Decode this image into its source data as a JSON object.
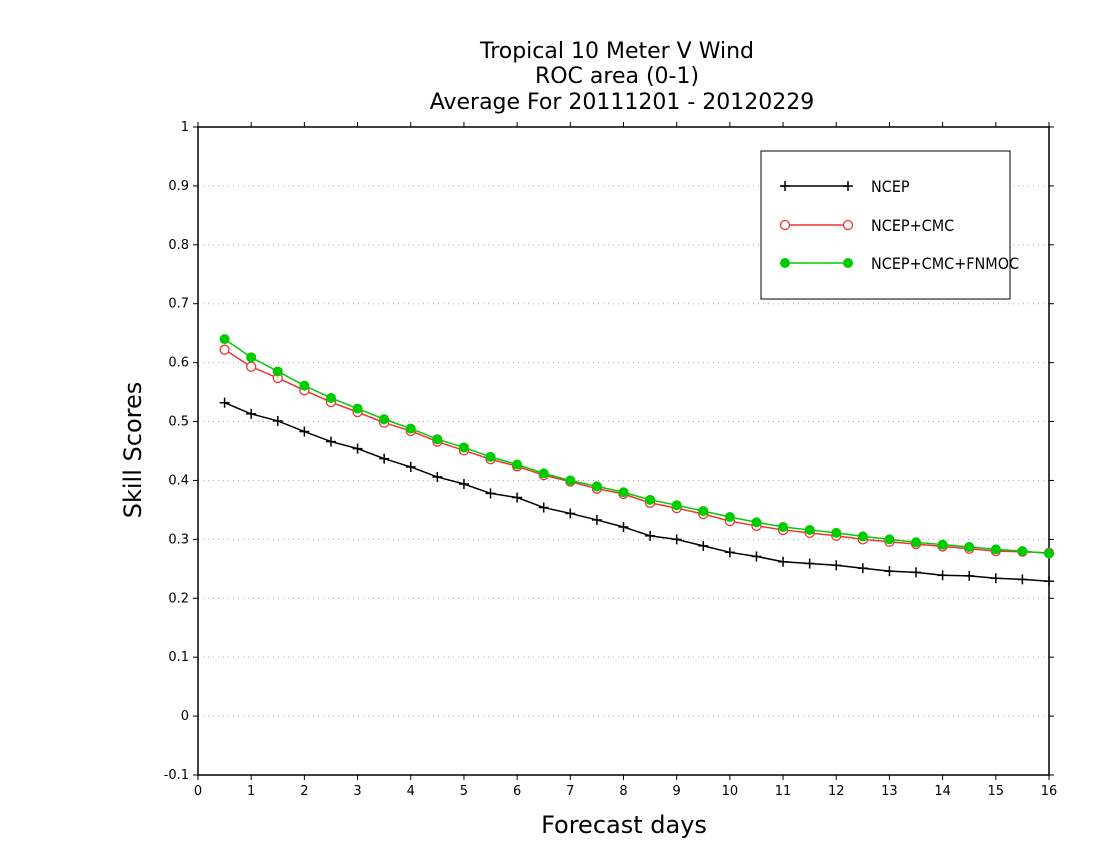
{
  "chart_data": {
    "type": "line",
    "title_lines": [
      "Tropical 10 Meter V Wind",
      "ROC area (0-1)",
      "Average For 20111201 - 20120229"
    ],
    "xlabel": "Forecast days",
    "ylabel": "Skill Scores",
    "xlim": [
      0,
      16
    ],
    "ylim": [
      -0.1,
      1
    ],
    "x_ticks": [
      0,
      1,
      2,
      3,
      4,
      5,
      6,
      7,
      8,
      9,
      10,
      11,
      12,
      13,
      14,
      15,
      16
    ],
    "y_ticks": [
      -0.1,
      0,
      0.1,
      0.2,
      0.3,
      0.4,
      0.5,
      0.6,
      0.7,
      0.8,
      0.9,
      1
    ],
    "y_tick_labels": [
      "-0.1",
      "0",
      "0.1",
      "0.2",
      "0.3",
      "0.4",
      "0.5",
      "0.6",
      "0.7",
      "0.8",
      "0.9",
      "1"
    ],
    "grid": "horizontal dotted",
    "legend_position": "top-right",
    "x": [
      0.5,
      1,
      1.5,
      2,
      2.5,
      3,
      3.5,
      4,
      4.5,
      5,
      5.5,
      6,
      6.5,
      7,
      7.5,
      8,
      8.5,
      9,
      9.5,
      10,
      10.5,
      11,
      11.5,
      12,
      12.5,
      13,
      13.5,
      14,
      14.5,
      15,
      15.5,
      16
    ],
    "series": [
      {
        "name": "NCEP",
        "color": "#000000",
        "marker": "plus",
        "values": [
          0.532,
          0.513,
          0.501,
          0.483,
          0.466,
          0.454,
          0.437,
          0.423,
          0.406,
          0.394,
          0.378,
          0.371,
          0.354,
          0.344,
          0.333,
          0.321,
          0.306,
          0.3,
          0.289,
          0.278,
          0.271,
          0.262,
          0.259,
          0.256,
          0.251,
          0.246,
          0.244,
          0.239,
          0.238,
          0.234,
          0.232,
          0.229
        ]
      },
      {
        "name": "NCEP+CMC",
        "color": "#ee3333",
        "marker": "open-circle",
        "values": [
          0.622,
          0.593,
          0.574,
          0.553,
          0.533,
          0.516,
          0.498,
          0.484,
          0.466,
          0.451,
          0.436,
          0.424,
          0.409,
          0.398,
          0.386,
          0.377,
          0.362,
          0.353,
          0.343,
          0.331,
          0.323,
          0.316,
          0.311,
          0.306,
          0.3,
          0.296,
          0.292,
          0.288,
          0.284,
          0.28,
          0.279,
          0.277
        ]
      },
      {
        "name": "NCEP+CMC+FNMOC",
        "color": "#00cc00",
        "marker": "filled-circle",
        "values": [
          0.64,
          0.609,
          0.585,
          0.561,
          0.54,
          0.522,
          0.504,
          0.488,
          0.47,
          0.456,
          0.44,
          0.427,
          0.412,
          0.4,
          0.39,
          0.38,
          0.367,
          0.358,
          0.348,
          0.338,
          0.329,
          0.321,
          0.316,
          0.311,
          0.305,
          0.3,
          0.295,
          0.291,
          0.287,
          0.283,
          0.28,
          0.276
        ]
      }
    ]
  }
}
